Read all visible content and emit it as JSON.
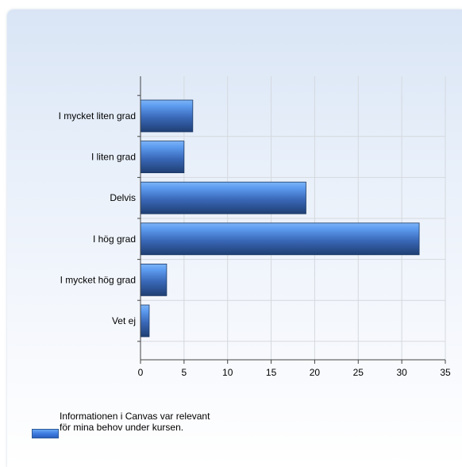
{
  "chart_data": {
    "type": "bar",
    "orientation": "horizontal",
    "categories": [
      "I mycket liten grad",
      "I liten grad",
      "Delvis",
      "I hög grad",
      "I mycket hög grad",
      "Vet ej"
    ],
    "series": [
      {
        "name": "Informationen i Canvas var relevant för mina behov under kursen.",
        "values": [
          6,
          5,
          19,
          32,
          3,
          1
        ]
      }
    ],
    "xlim": [
      0,
      35
    ],
    "xticks": [
      0,
      5,
      10,
      15,
      20,
      25,
      30,
      35
    ],
    "grid": true,
    "legend_position": "bottom-left",
    "colors": {
      "bar_top": "#5d9cf0",
      "bar_bottom": "#1f3f73",
      "grid": "#d5d9de",
      "axis": "#444444"
    }
  },
  "legend": {
    "label": "Informationen i Canvas var relevant för mina behov under kursen."
  }
}
